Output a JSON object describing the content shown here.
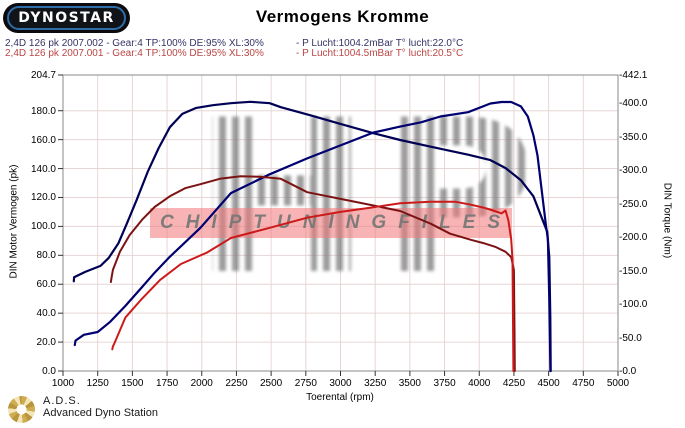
{
  "header": {
    "logo_text": "DYNOSTAR",
    "title": "Vermogens Kromme"
  },
  "legend": {
    "runs": [
      {
        "label": "2,4D 126 pk 2007.002 - Gear:4 TP:100% DE:95% XL:30%",
        "conditions": "- P Lucht:1004.2mBar T° lucht:22.0°C",
        "color": "#333366"
      },
      {
        "label": "2,4D 126 pk 2007.001 - Gear:4 TP:100% DE:95% XL:30%",
        "conditions": "- P Lucht:1004.5mBar T° lucht:20.5°C",
        "color": "#bb4444"
      }
    ]
  },
  "watermark": {
    "brand": "HP",
    "text": "CHIPTUNINGFILES"
  },
  "footer": {
    "abbr": "A.D.S.",
    "name": "Advanced Dyno Station"
  },
  "chart_data": {
    "type": "line",
    "title": "Vermogens Kromme",
    "xlabel": "Toerental (rpm)",
    "ylabel_left": "DIN Motor Vermogen (pk)",
    "ylabel_right": "DIN Torque (Nm)",
    "xlim": [
      1000,
      5000
    ],
    "ylim_left": [
      0,
      204.7
    ],
    "ylim_right": [
      0,
      442.1
    ],
    "grid": true,
    "grid_color": "#e6d6d6",
    "border_color": "#8a8a8a",
    "x_ticks": [
      1000,
      1250,
      1500,
      1750,
      2000,
      2250,
      2500,
      2750,
      3000,
      3250,
      3500,
      3750,
      4000,
      4250,
      4500,
      4750,
      5000
    ],
    "y_ticks_left": {
      "values": [
        204.7,
        180,
        160,
        140,
        120,
        100,
        80,
        60,
        40,
        20,
        0
      ],
      "labels": [
        "204.7",
        "180.0",
        "160.0",
        "140.0",
        "120.0",
        "100.0",
        "80.0",
        "60.0",
        "40.0",
        "20.0",
        "0.0"
      ]
    },
    "y_ticks_right": {
      "values": [
        442.1,
        400,
        350,
        300,
        250,
        200,
        150,
        100,
        50,
        0
      ],
      "labels": [
        "-442.1",
        "-400.0",
        "-350.0",
        "-300.0",
        "-250.0",
        "-200.0",
        "-150.0",
        "-100.0",
        "-50.0",
        "-0.0"
      ]
    },
    "series": [
      {
        "id": "run2-torque",
        "run": "2007.002",
        "measure": "torque",
        "axis": "right",
        "color": "#000055",
        "width": 2.2,
        "points": [
          [
            1078,
            134
          ],
          [
            1080,
            140
          ],
          [
            1160,
            148
          ],
          [
            1270,
            157
          ],
          [
            1330,
            169
          ],
          [
            1400,
            191
          ],
          [
            1460,
            220
          ],
          [
            1530,
            255
          ],
          [
            1610,
            297
          ],
          [
            1690,
            333
          ],
          [
            1770,
            364
          ],
          [
            1860,
            384
          ],
          [
            1960,
            393
          ],
          [
            2080,
            397
          ],
          [
            2210,
            400
          ],
          [
            2350,
            402
          ],
          [
            2490,
            400
          ],
          [
            2570,
            394
          ],
          [
            2780,
            382
          ],
          [
            3000,
            369
          ],
          [
            3240,
            355
          ],
          [
            3430,
            345
          ],
          [
            3650,
            335
          ],
          [
            3920,
            323
          ],
          [
            4080,
            315
          ],
          [
            4190,
            303
          ],
          [
            4300,
            285
          ],
          [
            4390,
            261
          ],
          [
            4450,
            229
          ],
          [
            4490,
            208
          ],
          [
            4505,
            170
          ],
          [
            4512,
            80
          ],
          [
            4515,
            0
          ]
        ]
      },
      {
        "id": "run2-power",
        "run": "2007.002",
        "measure": "power",
        "axis": "left",
        "color": "#000070",
        "width": 2.2,
        "points": [
          [
            1085,
            18
          ],
          [
            1090,
            21
          ],
          [
            1150,
            25
          ],
          [
            1250,
            27
          ],
          [
            1340,
            34
          ],
          [
            1450,
            45
          ],
          [
            1560,
            57
          ],
          [
            1660,
            68
          ],
          [
            1770,
            79
          ],
          [
            1880,
            89
          ],
          [
            1990,
            99
          ],
          [
            2210,
            123
          ],
          [
            2490,
            136
          ],
          [
            2760,
            147
          ],
          [
            3000,
            156
          ],
          [
            3240,
            165
          ],
          [
            3430,
            169
          ],
          [
            3580,
            172
          ],
          [
            3720,
            176
          ],
          [
            3920,
            179
          ],
          [
            4080,
            185
          ],
          [
            4160,
            186
          ],
          [
            4230,
            186
          ],
          [
            4300,
            183
          ],
          [
            4350,
            176
          ],
          [
            4390,
            163
          ],
          [
            4420,
            149
          ],
          [
            4450,
            125
          ],
          [
            4480,
            101
          ],
          [
            4495,
            91
          ],
          [
            4505,
            49
          ],
          [
            4513,
            0
          ]
        ]
      },
      {
        "id": "run1-torque",
        "run": "2007.001",
        "measure": "torque",
        "axis": "right",
        "color": "#7c1313",
        "width": 2,
        "points": [
          [
            1345,
            133
          ],
          [
            1350,
            140
          ],
          [
            1360,
            151
          ],
          [
            1410,
            178
          ],
          [
            1480,
            203
          ],
          [
            1570,
            226
          ],
          [
            1660,
            245
          ],
          [
            1770,
            261
          ],
          [
            1880,
            273
          ],
          [
            1990,
            279
          ],
          [
            2130,
            287
          ],
          [
            2280,
            291
          ],
          [
            2420,
            290
          ],
          [
            2570,
            287
          ],
          [
            2760,
            267
          ],
          [
            3000,
            257
          ],
          [
            3220,
            248
          ],
          [
            3430,
            239
          ],
          [
            3650,
            220
          ],
          [
            3790,
            205
          ],
          [
            3940,
            196
          ],
          [
            4030,
            191
          ],
          [
            4120,
            185
          ],
          [
            4190,
            178
          ],
          [
            4230,
            170
          ],
          [
            4250,
            151
          ],
          [
            4254,
            60
          ],
          [
            4256,
            0
          ]
        ]
      },
      {
        "id": "run1-power",
        "run": "2007.001",
        "measure": "power",
        "axis": "left",
        "color": "#cc1a1a",
        "width": 2,
        "points": [
          [
            1355,
            15
          ],
          [
            1360,
            17
          ],
          [
            1370,
            19
          ],
          [
            1450,
            37
          ],
          [
            1560,
            49
          ],
          [
            1700,
            63
          ],
          [
            1850,
            74
          ],
          [
            2040,
            82
          ],
          [
            2210,
            92
          ],
          [
            2490,
            99
          ],
          [
            2760,
            106
          ],
          [
            3000,
            110
          ],
          [
            3220,
            113
          ],
          [
            3430,
            116
          ],
          [
            3650,
            117
          ],
          [
            3830,
            117
          ],
          [
            3940,
            115
          ],
          [
            4030,
            113
          ],
          [
            4100,
            111
          ],
          [
            4160,
            109
          ],
          [
            4190,
            111
          ],
          [
            4210,
            104
          ],
          [
            4230,
            91
          ],
          [
            4240,
            77
          ],
          [
            4246,
            0
          ]
        ]
      }
    ]
  }
}
